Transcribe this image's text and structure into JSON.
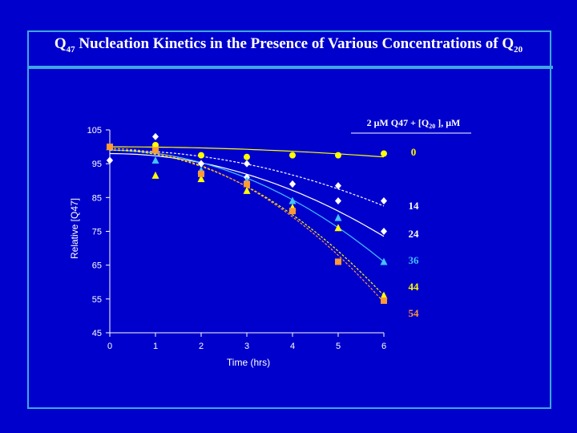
{
  "title": {
    "prefix": "Q",
    "sub1": "47",
    "middle": " Nucleation Kinetics in the Presence of Various Concentrations of Q",
    "sub2": "20"
  },
  "colors": {
    "background": "#0000cc",
    "frame": "#3fa7e0",
    "s0": "#ffff00",
    "s14": "#ffffff",
    "s24": "#ffffff",
    "s36": "#44c0ff",
    "s44": "#ffff00",
    "s54": "#ff9933"
  },
  "chart_data": {
    "type": "scatter",
    "xlabel": "Time (hrs)",
    "ylabel": "Relative [Q47]",
    "xlim": [
      0,
      6
    ],
    "ylim": [
      45,
      105
    ],
    "xticks": [
      "0",
      "1",
      "2",
      "3",
      "4",
      "5",
      "6"
    ],
    "yticks": [
      "105",
      "95",
      "85",
      "75",
      "65",
      "55",
      "45"
    ],
    "legend_title": "2 μM Q47 + [Q20 ], μM",
    "series": [
      {
        "name": "0",
        "marker": "circle",
        "line": "solid",
        "x": [
          0,
          1,
          2,
          3,
          4,
          5,
          6
        ],
        "y": [
          100,
          100.5,
          97.5,
          97,
          97.5,
          97.5,
          98
        ],
        "fit": [
          100,
          97
        ]
      },
      {
        "name": "14",
        "marker": "diamond",
        "line": "dash",
        "x": [
          0,
          1,
          2,
          3,
          4,
          5,
          6
        ],
        "y": [
          96,
          103,
          95,
          91,
          89,
          88.5,
          84
        ],
        "fit": [
          99,
          82.5
        ]
      },
      {
        "name": "24",
        "marker": "diamond",
        "line": "solid",
        "x": [
          0,
          1,
          2,
          3,
          4,
          5,
          6
        ],
        "y": [
          96,
          99,
          95,
          95,
          89,
          84,
          75
        ],
        "fit": [
          98,
          73.5
        ]
      },
      {
        "name": "36",
        "marker": "triangle",
        "line": "solid",
        "x": [
          0,
          1,
          2,
          3,
          4,
          5,
          6
        ],
        "y": [
          100,
          96,
          93,
          90,
          84,
          79,
          66
        ],
        "fit": [
          99,
          66
        ]
      },
      {
        "name": "44",
        "marker": "triangle",
        "line": "dash",
        "x": [
          0,
          1,
          2,
          3,
          4,
          5,
          6
        ],
        "y": [
          100,
          91.5,
          90.5,
          87,
          82,
          76,
          56
        ],
        "fit": [
          99,
          56
        ]
      },
      {
        "name": "54",
        "marker": "square",
        "line": "dash",
        "x": [
          0,
          1,
          2,
          3,
          4,
          5,
          6
        ],
        "y": [
          100,
          99,
          92,
          89,
          81,
          66,
          54.5
        ],
        "fit": [
          99.5,
          54
        ]
      }
    ]
  }
}
